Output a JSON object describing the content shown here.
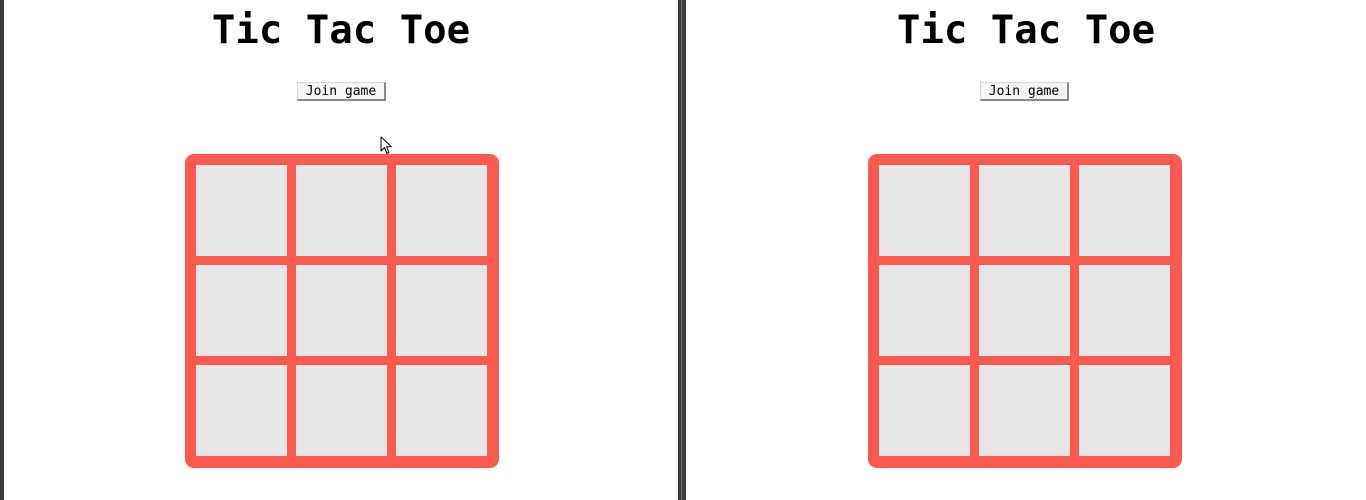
{
  "accent_color": "#fb5a52",
  "cell_color": "#e6e6e6",
  "windows": [
    {
      "title": "Tic Tac Toe",
      "join_label": "Join game",
      "board": [
        "",
        "",
        "",
        "",
        "",
        "",
        "",
        "",
        ""
      ]
    },
    {
      "title": "Tic Tac Toe",
      "join_label": "Join game",
      "board": [
        "",
        "",
        "",
        "",
        "",
        "",
        "",
        "",
        ""
      ]
    }
  ],
  "cursor_icon": "mouse-pointer-icon"
}
